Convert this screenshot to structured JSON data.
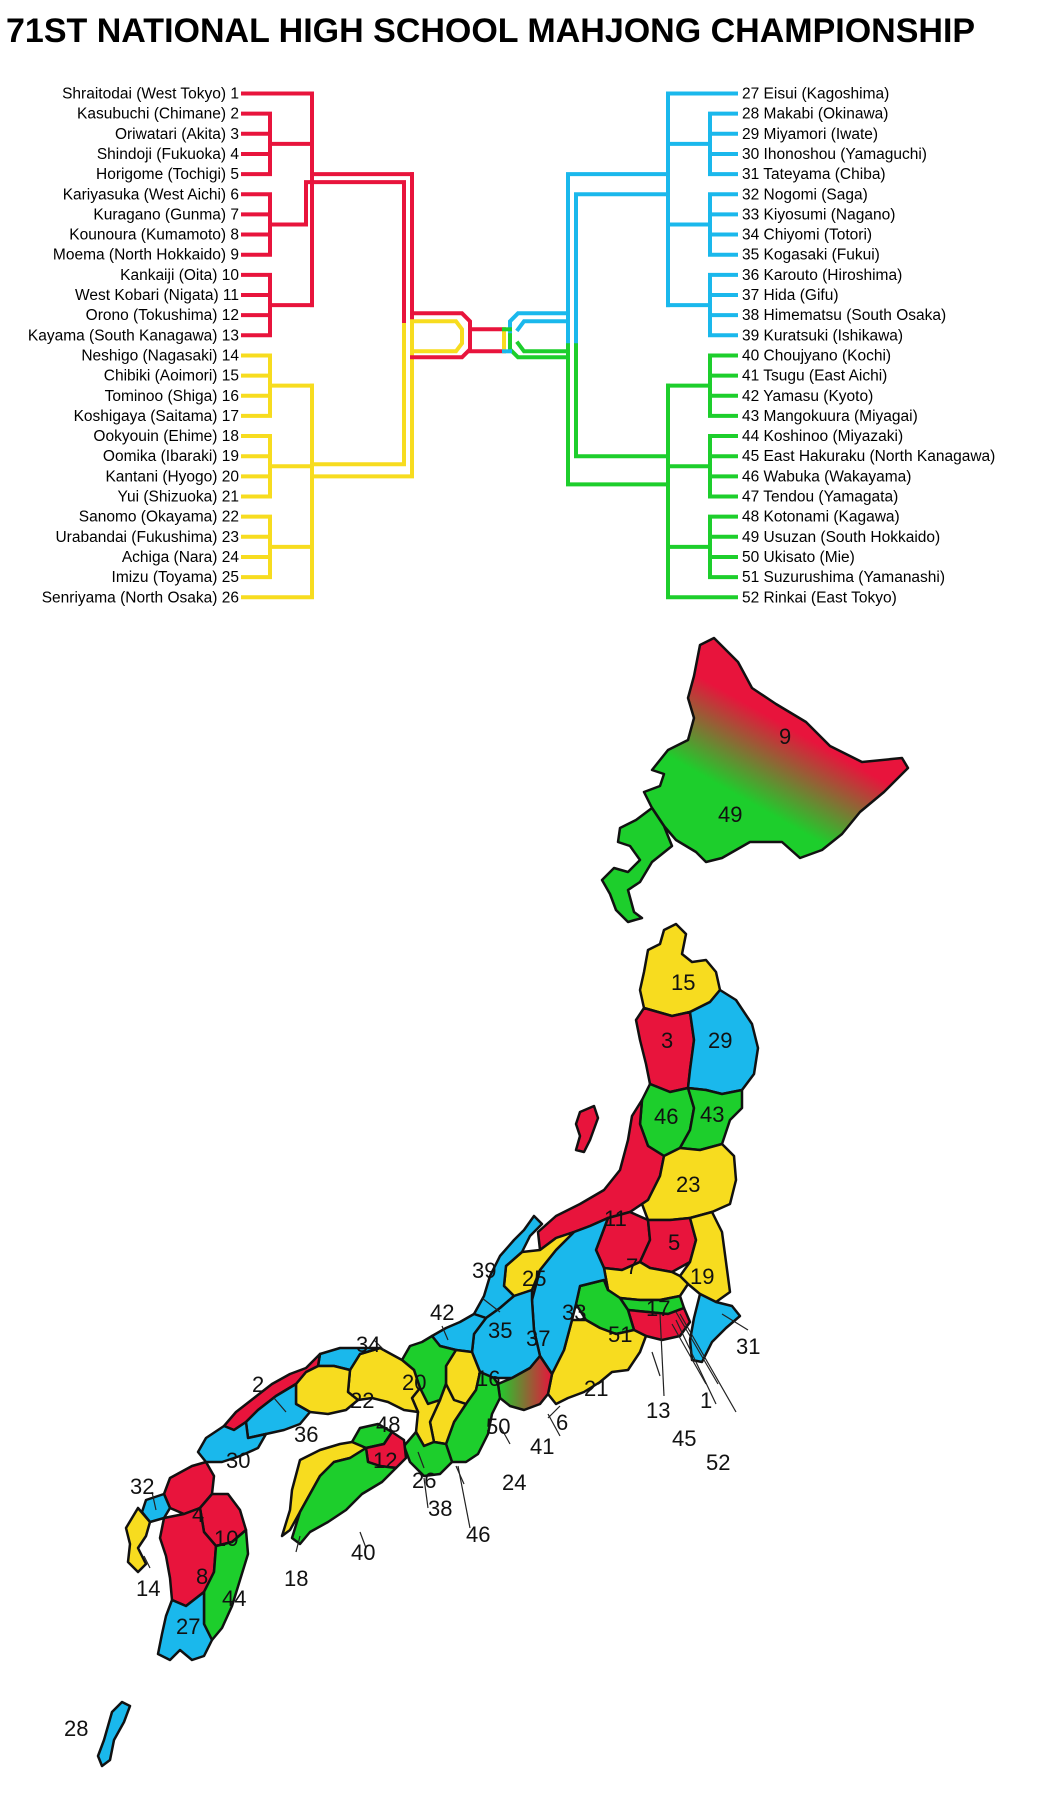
{
  "title": "71ST NATIONAL HIGH SCHOOL MAHJONG CHAMPIONSHIP",
  "colors": {
    "red": "#e8143c",
    "yellow": "#f7dc1f",
    "blue": "#1ab8ec",
    "green": "#1dce2c",
    "outline": "#111111"
  },
  "left_teams": [
    {
      "name": "Shraitodai (West Tokyo)",
      "num": "1",
      "color": "red"
    },
    {
      "name": "Kasubuchi (Chimane)",
      "num": "2",
      "color": "red"
    },
    {
      "name": "Oriwatari (Akita)",
      "num": "3",
      "color": "red"
    },
    {
      "name": "Shindoji (Fukuoka)",
      "num": "4",
      "color": "red"
    },
    {
      "name": "Horigome (Tochigi)",
      "num": "5",
      "color": "red"
    },
    {
      "name": "Kariyasuka (West Aichi)",
      "num": "6",
      "color": "red"
    },
    {
      "name": "Kuragano (Gunma)",
      "num": "7",
      "color": "red"
    },
    {
      "name": "Kounoura (Kumamoto)",
      "num": "8",
      "color": "red"
    },
    {
      "name": "Moema (North Hokkaido)",
      "num": "9",
      "color": "red"
    },
    {
      "name": "Kankaiji (Oita)",
      "num": "10",
      "color": "red"
    },
    {
      "name": "West Kobari (Nigata)",
      "num": "11",
      "color": "red"
    },
    {
      "name": "Orono (Tokushima)",
      "num": "12",
      "color": "red"
    },
    {
      "name": "Kayama (South Kanagawa)",
      "num": "13",
      "color": "red"
    },
    {
      "name": "Neshigo (Nagasaki)",
      "num": "14",
      "color": "yellow"
    },
    {
      "name": "Chibiki (Aoimori)",
      "num": "15",
      "color": "yellow"
    },
    {
      "name": "Tominoo (Shiga)",
      "num": "16",
      "color": "yellow"
    },
    {
      "name": "Koshigaya (Saitama)",
      "num": "17",
      "color": "yellow"
    },
    {
      "name": "Ookyouin (Ehime)",
      "num": "18",
      "color": "yellow"
    },
    {
      "name": "Oomika (Ibaraki)",
      "num": "19",
      "color": "yellow"
    },
    {
      "name": "Kantani (Hyogo)",
      "num": "20",
      "color": "yellow"
    },
    {
      "name": "Yui (Shizuoka)",
      "num": "21",
      "color": "yellow"
    },
    {
      "name": "Sanomo (Okayama)",
      "num": "22",
      "color": "yellow"
    },
    {
      "name": "Urabandai (Fukushima)",
      "num": "23",
      "color": "yellow"
    },
    {
      "name": "Achiga (Nara)",
      "num": "24",
      "color": "yellow"
    },
    {
      "name": "Imizu (Toyama)",
      "num": "25",
      "color": "yellow"
    },
    {
      "name": "Senriyama (North Osaka)",
      "num": "26",
      "color": "yellow"
    }
  ],
  "right_teams": [
    {
      "name": "Eisui (Kagoshima)",
      "num": "27",
      "color": "blue"
    },
    {
      "name": "Makabi (Okinawa)",
      "num": "28",
      "color": "blue"
    },
    {
      "name": "Miyamori (Iwate)",
      "num": "29",
      "color": "blue"
    },
    {
      "name": "Ihonoshou (Yamaguchi)",
      "num": "30",
      "color": "blue"
    },
    {
      "name": "Tateyama (Chiba)",
      "num": "31",
      "color": "blue"
    },
    {
      "name": "Nogomi (Saga)",
      "num": "32",
      "color": "blue"
    },
    {
      "name": "Kiyosumi (Nagano)",
      "num": "33",
      "color": "blue"
    },
    {
      "name": "Chiyomi (Totori)",
      "num": "34",
      "color": "blue"
    },
    {
      "name": "Kogasaki (Fukui)",
      "num": "35",
      "color": "blue"
    },
    {
      "name": "Karouto (Hiroshima)",
      "num": "36",
      "color": "blue"
    },
    {
      "name": "Hida (Gifu)",
      "num": "37",
      "color": "blue"
    },
    {
      "name": "Himematsu (South Osaka)",
      "num": "38",
      "color": "blue"
    },
    {
      "name": "Kuratsuki (Ishikawa)",
      "num": "39",
      "color": "blue"
    },
    {
      "name": "Choujyano (Kochi)",
      "num": "40",
      "color": "green"
    },
    {
      "name": "Tsugu (East Aichi)",
      "num": "41",
      "color": "green"
    },
    {
      "name": "Yamasu (Kyoto)",
      "num": "42",
      "color": "green"
    },
    {
      "name": "Mangokuura (Miyagai)",
      "num": "43",
      "color": "green"
    },
    {
      "name": "Koshinoo (Miyazaki)",
      "num": "44",
      "color": "green"
    },
    {
      "name": "East Hakuraku (North Kanagawa)",
      "num": "45",
      "color": "green"
    },
    {
      "name": "Wabuka (Wakayama)",
      "num": "46",
      "color": "green"
    },
    {
      "name": "Tendou (Yamagata)",
      "num": "47",
      "color": "green"
    },
    {
      "name": "Kotonami (Kagawa)",
      "num": "48",
      "color": "green"
    },
    {
      "name": "Usuzan (South Hokkaido)",
      "num": "49",
      "color": "green"
    },
    {
      "name": "Ukisato (Mie)",
      "num": "50",
      "color": "green"
    },
    {
      "name": "Suzurushima (Yamanashi)",
      "num": "51",
      "color": "green"
    },
    {
      "name": "Rinkai (East Tokyo)",
      "num": "52",
      "color": "green"
    }
  ],
  "map_labels": {
    "n1": "1",
    "n2": "2",
    "n3": "3",
    "n4": "4",
    "n5": "5",
    "n6": "6",
    "n7": "7",
    "n8": "8",
    "n9": "9",
    "n10": "10",
    "n11": "11",
    "n12": "12",
    "n13": "13",
    "n14": "14",
    "n15": "15",
    "n16": "16",
    "n17": "17",
    "n18": "18",
    "n19": "19",
    "n20": "20",
    "n21": "21",
    "n22": "22",
    "n23": "23",
    "n24": "24",
    "n25": "25",
    "n26": "26",
    "n27": "27",
    "n28": "28",
    "n29": "29",
    "n30": "30",
    "n31": "31",
    "n32": "32",
    "n33": "33",
    "n34": "34",
    "n35": "35",
    "n36": "36",
    "n37": "37",
    "n38": "38",
    "n39": "39",
    "n40": "40",
    "n41": "41",
    "n42": "42",
    "n43": "43",
    "n44": "44",
    "n45": "45",
    "n46": "46",
    "n48": "48",
    "n49": "49",
    "n50": "50",
    "n51": "51",
    "n52": "52"
  }
}
